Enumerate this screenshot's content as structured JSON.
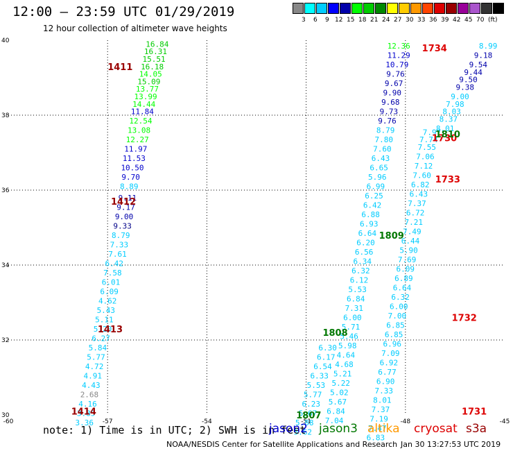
{
  "title": "12:00 – 23:59 UTC 01/29/2019",
  "subtitle": "12 hour collection of altimeter wave heights",
  "scale": {
    "colors": [
      "#888888",
      "#00ffff",
      "#00ccff",
      "#0000ff",
      "#0000aa",
      "#00ff00",
      "#00cc00",
      "#008800",
      "#ffff00",
      "#ffcc00",
      "#ff9900",
      "#ff4400",
      "#dd0000",
      "#990000",
      "#990099",
      "#aa55cc",
      "#333333",
      "#000000"
    ],
    "labels": [
      "3",
      "6",
      "9",
      "12",
      "15",
      "18",
      "21",
      "24",
      "27",
      "30",
      "33",
      "36",
      "39",
      "42",
      "45",
      "70",
      "(ft)"
    ]
  },
  "axes": {
    "x_ticks": [
      "-60",
      "-57",
      "-54",
      "-51",
      "-48",
      "-45"
    ],
    "y_ticks": [
      "30",
      "32",
      "34",
      "36",
      "38",
      "40"
    ],
    "lon_range": [
      -60,
      -45
    ],
    "lat_range": [
      30,
      40
    ]
  },
  "footer": {
    "note": "note: 1) Time is in UTC; 2) SWH is in feet",
    "credit": "NOAA/NESDIS Center for Satellite Applications and Research",
    "timestamp": "Jan 30 13:27:53 UTC 2019"
  },
  "satellites": [
    {
      "name": "jason2",
      "color": "#0000cc"
    },
    {
      "name": "jason3",
      "color": "#007700"
    },
    {
      "name": "altika",
      "color": "#ff9900"
    },
    {
      "name": "cryosat",
      "color": "#dd0000"
    },
    {
      "name": "s3a",
      "color": "#990000"
    }
  ],
  "time_labels": [
    {
      "text": "1411",
      "lon": -57.0,
      "lat": 39.3,
      "color": "#990000"
    },
    {
      "text": "1412",
      "lon": -56.9,
      "lat": 35.7,
      "color": "#990000"
    },
    {
      "text": "1413",
      "lon": -57.3,
      "lat": 32.3,
      "color": "#990000"
    },
    {
      "text": "1414",
      "lon": -58.1,
      "lat": 30.1,
      "color": "#990000"
    },
    {
      "text": "1734",
      "lon": -47.5,
      "lat": 39.8,
      "color": "#dd0000"
    },
    {
      "text": "1733",
      "lon": -47.1,
      "lat": 36.3,
      "color": "#dd0000"
    },
    {
      "text": "1732",
      "lon": -46.6,
      "lat": 32.6,
      "color": "#dd0000"
    },
    {
      "text": "1731",
      "lon": -46.3,
      "lat": 30.1,
      "color": "#dd0000"
    },
    {
      "text": "1730",
      "lon": -47.2,
      "lat": 37.4,
      "color": "#dd0000"
    },
    {
      "text": "1810",
      "lon": -47.1,
      "lat": 37.5,
      "color": "#007700"
    },
    {
      "text": "1809",
      "lon": -48.8,
      "lat": 34.8,
      "color": "#007700"
    },
    {
      "text": "1808",
      "lon": -50.5,
      "lat": 32.2,
      "color": "#007700"
    },
    {
      "text": "1807",
      "lon": -51.3,
      "lat": 30.0,
      "color": "#007700"
    }
  ],
  "tracks": [
    {
      "name": "s3a-track",
      "points": [
        {
          "lon": -55.5,
          "lat": 39.9,
          "v": "16.84",
          "c": "#00cc00"
        },
        {
          "lon": -55.55,
          "lat": 39.7,
          "v": "16.31",
          "c": "#00cc00"
        },
        {
          "lon": -55.6,
          "lat": 39.5,
          "v": "15.51",
          "c": "#00cc00"
        },
        {
          "lon": -55.65,
          "lat": 39.3,
          "v": "16.18",
          "c": "#00cc00"
        },
        {
          "lon": -55.7,
          "lat": 39.1,
          "v": "14.05",
          "c": "#00ff00"
        },
        {
          "lon": -55.75,
          "lat": 38.9,
          "v": "15.09",
          "c": "#00cc00"
        },
        {
          "lon": -55.8,
          "lat": 38.7,
          "v": "13.77",
          "c": "#00ff00"
        },
        {
          "lon": -55.85,
          "lat": 38.5,
          "v": "13.99",
          "c": "#00ff00"
        },
        {
          "lon": -55.9,
          "lat": 38.3,
          "v": "14.44",
          "c": "#00ff00"
        },
        {
          "lon": -55.95,
          "lat": 38.1,
          "v": "11.84",
          "c": "#0000cc"
        },
        {
          "lon": -56.0,
          "lat": 37.85,
          "v": "12.54",
          "c": "#00ff00"
        },
        {
          "lon": -56.05,
          "lat": 37.6,
          "v": "13.08",
          "c": "#00ff00"
        },
        {
          "lon": -56.1,
          "lat": 37.35,
          "v": "12.27",
          "c": "#00ff00"
        },
        {
          "lon": -56.15,
          "lat": 37.1,
          "v": "11.97",
          "c": "#0000cc"
        },
        {
          "lon": -56.2,
          "lat": 36.85,
          "v": "11.53",
          "c": "#0000cc"
        },
        {
          "lon": -56.25,
          "lat": 36.6,
          "v": "10.50",
          "c": "#0000cc"
        },
        {
          "lon": -56.3,
          "lat": 36.35,
          "v": "9.70",
          "c": "#0000cc"
        },
        {
          "lon": -56.35,
          "lat": 36.1,
          "v": "8.89",
          "c": "#00ccff"
        },
        {
          "lon": -56.4,
          "lat": 35.8,
          "v": "9.11",
          "c": "#0000aa"
        },
        {
          "lon": -56.45,
          "lat": 35.55,
          "v": "9.17",
          "c": "#0000aa"
        },
        {
          "lon": -56.5,
          "lat": 35.3,
          "v": "9.00",
          "c": "#0000aa"
        },
        {
          "lon": -56.55,
          "lat": 35.05,
          "v": "9.33",
          "c": "#000088"
        },
        {
          "lon": -56.6,
          "lat": 34.8,
          "v": "8.79",
          "c": "#00ccff"
        },
        {
          "lon": -56.65,
          "lat": 34.55,
          "v": "7.33",
          "c": "#00ccff"
        },
        {
          "lon": -56.7,
          "lat": 34.3,
          "v": "7.61",
          "c": "#00ccff"
        },
        {
          "lon": -56.8,
          "lat": 34.05,
          "v": "6.42",
          "c": "#00ccff"
        },
        {
          "lon": -56.85,
          "lat": 33.8,
          "v": "7.58",
          "c": "#00ccff"
        },
        {
          "lon": -56.9,
          "lat": 33.55,
          "v": "6.01",
          "c": "#00ccff"
        },
        {
          "lon": -56.95,
          "lat": 33.3,
          "v": "6.09",
          "c": "#00ccff"
        },
        {
          "lon": -57.0,
          "lat": 33.05,
          "v": "4.62",
          "c": "#00ccff"
        },
        {
          "lon": -57.05,
          "lat": 32.8,
          "v": "5.43",
          "c": "#00ccff"
        },
        {
          "lon": -57.1,
          "lat": 32.55,
          "v": "5.11",
          "c": "#00ccff"
        },
        {
          "lon": -57.15,
          "lat": 32.3,
          "v": "5.20",
          "c": "#00ccff"
        },
        {
          "lon": -57.2,
          "lat": 32.05,
          "v": "6.27",
          "c": "#00ccff"
        },
        {
          "lon": -57.3,
          "lat": 31.8,
          "v": "5.84",
          "c": "#00ccff"
        },
        {
          "lon": -57.35,
          "lat": 31.55,
          "v": "5.77",
          "c": "#00ccff"
        },
        {
          "lon": -57.4,
          "lat": 31.3,
          "v": "4.72",
          "c": "#00ccff"
        },
        {
          "lon": -57.45,
          "lat": 31.05,
          "v": "4.91",
          "c": "#00ccff"
        },
        {
          "lon": -57.5,
          "lat": 30.8,
          "v": "4.43",
          "c": "#00ccff"
        },
        {
          "lon": -57.55,
          "lat": 30.55,
          "v": "2.68",
          "c": "#888888"
        },
        {
          "lon": -57.6,
          "lat": 30.3,
          "v": "4.16",
          "c": "#00ccff"
        },
        {
          "lon": -57.65,
          "lat": 30.05,
          "v": "3.85",
          "c": "#00ccff"
        },
        {
          "lon": -57.7,
          "lat": 29.8,
          "v": "3.36",
          "c": "#00ccff"
        }
      ]
    },
    {
      "name": "cryosat-track",
      "points": [
        {
          "lon": -45.5,
          "lat": 39.85,
          "v": "8.99",
          "c": "#00ccff"
        },
        {
          "lon": -45.65,
          "lat": 39.6,
          "v": "9.18",
          "c": "#0000aa"
        },
        {
          "lon": -45.8,
          "lat": 39.35,
          "v": "9.54",
          "c": "#0000aa"
        },
        {
          "lon": -45.95,
          "lat": 39.15,
          "v": "9.44",
          "c": "#0000aa"
        },
        {
          "lon": -46.1,
          "lat": 38.95,
          "v": "9.50",
          "c": "#0000aa"
        },
        {
          "lon": -46.2,
          "lat": 38.75,
          "v": "9.38",
          "c": "#0000aa"
        },
        {
          "lon": -46.35,
          "lat": 38.5,
          "v": "9.00",
          "c": "#00ccff"
        },
        {
          "lon": -46.5,
          "lat": 38.3,
          "v": "7.98",
          "c": "#00ccff"
        },
        {
          "lon": -46.6,
          "lat": 38.1,
          "v": "8.03",
          "c": "#00ccff"
        },
        {
          "lon": -46.7,
          "lat": 37.9,
          "v": "8.37",
          "c": "#00ccff"
        },
        {
          "lon": -46.8,
          "lat": 37.65,
          "v": "8.01",
          "c": "#00ccff"
        },
        {
          "lon": -47.2,
          "lat": 37.55,
          "v": "7.97",
          "c": "#00ccff"
        },
        {
          "lon": -47.3,
          "lat": 37.35,
          "v": "7.74",
          "c": "#00ccff"
        },
        {
          "lon": -47.35,
          "lat": 37.15,
          "v": "7.55",
          "c": "#00ccff"
        },
        {
          "lon": -47.4,
          "lat": 36.9,
          "v": "7.06",
          "c": "#00ccff"
        },
        {
          "lon": -47.45,
          "lat": 36.65,
          "v": "7.12",
          "c": "#00ccff"
        },
        {
          "lon": -47.5,
          "lat": 36.4,
          "v": "7.60",
          "c": "#00ccff"
        },
        {
          "lon": -47.55,
          "lat": 36.15,
          "v": "6.82",
          "c": "#00ccff"
        },
        {
          "lon": -47.6,
          "lat": 35.9,
          "v": "6.43",
          "c": "#00ccff"
        },
        {
          "lon": -47.65,
          "lat": 35.65,
          "v": "7.37",
          "c": "#00ccff"
        },
        {
          "lon": -47.7,
          "lat": 35.4,
          "v": "6.72",
          "c": "#00ccff"
        },
        {
          "lon": -47.75,
          "lat": 35.15,
          "v": "7.21",
          "c": "#00ccff"
        },
        {
          "lon": -47.8,
          "lat": 34.9,
          "v": "7.49",
          "c": "#00ccff"
        },
        {
          "lon": -47.85,
          "lat": 34.65,
          "v": "6.44",
          "c": "#00ccff"
        },
        {
          "lon": -47.9,
          "lat": 34.4,
          "v": "5.90",
          "c": "#00ccff"
        },
        {
          "lon": -47.95,
          "lat": 34.15,
          "v": "7.69",
          "c": "#00ccff"
        },
        {
          "lon": -48.0,
          "lat": 33.9,
          "v": "6.09",
          "c": "#00ccff"
        },
        {
          "lon": -48.05,
          "lat": 33.65,
          "v": "6.89",
          "c": "#00ccff"
        },
        {
          "lon": -48.1,
          "lat": 33.4,
          "v": "6.64",
          "c": "#00ccff"
        },
        {
          "lon": -48.15,
          "lat": 33.15,
          "v": "6.32",
          "c": "#00ccff"
        },
        {
          "lon": -48.2,
          "lat": 32.9,
          "v": "6.00",
          "c": "#00ccff"
        },
        {
          "lon": -48.25,
          "lat": 32.65,
          "v": "7.00",
          "c": "#00ccff"
        },
        {
          "lon": -48.3,
          "lat": 32.4,
          "v": "6.85",
          "c": "#00ccff"
        },
        {
          "lon": -48.35,
          "lat": 32.15,
          "v": "6.85",
          "c": "#00ccff"
        },
        {
          "lon": -48.4,
          "lat": 31.9,
          "v": "6.96",
          "c": "#00ccff"
        },
        {
          "lon": -48.45,
          "lat": 31.65,
          "v": "7.09",
          "c": "#00ccff"
        },
        {
          "lon": -48.5,
          "lat": 31.4,
          "v": "6.92",
          "c": "#00ccff"
        },
        {
          "lon": -48.55,
          "lat": 31.15,
          "v": "6.77",
          "c": "#00ccff"
        },
        {
          "lon": -48.6,
          "lat": 30.9,
          "v": "6.90",
          "c": "#00ccff"
        },
        {
          "lon": -48.65,
          "lat": 30.65,
          "v": "7.33",
          "c": "#00ccff"
        },
        {
          "lon": -48.7,
          "lat": 30.4,
          "v": "8.01",
          "c": "#00ccff"
        },
        {
          "lon": -48.75,
          "lat": 30.15,
          "v": "7.37",
          "c": "#00ccff"
        },
        {
          "lon": -48.8,
          "lat": 29.9,
          "v": "7.19",
          "c": "#00ccff"
        },
        {
          "lon": -48.85,
          "lat": 29.65,
          "v": "7.47",
          "c": "#00ccff"
        },
        {
          "lon": -48.9,
          "lat": 29.4,
          "v": "6.83",
          "c": "#00ccff"
        }
      ]
    },
    {
      "name": "jason3-track",
      "points": [
        {
          "lon": -48.2,
          "lat": 39.85,
          "v": "12.36",
          "c": "#00ff00"
        },
        {
          "lon": -48.2,
          "lat": 39.6,
          "v": "11.29",
          "c": "#0000cc"
        },
        {
          "lon": -48.25,
          "lat": 39.35,
          "v": "10.79",
          "c": "#0000cc"
        },
        {
          "lon": -48.3,
          "lat": 39.1,
          "v": "9.76",
          "c": "#0000aa"
        },
        {
          "lon": -48.35,
          "lat": 38.85,
          "v": "9.67",
          "c": "#0000aa"
        },
        {
          "lon": -48.4,
          "lat": 38.6,
          "v": "9.90",
          "c": "#0000aa"
        },
        {
          "lon": -48.45,
          "lat": 38.35,
          "v": "9.68",
          "c": "#0000aa"
        },
        {
          "lon": -48.5,
          "lat": 38.1,
          "v": "9.73",
          "c": "#0000aa"
        },
        {
          "lon": -48.55,
          "lat": 37.85,
          "v": "9.76",
          "c": "#0000aa"
        },
        {
          "lon": -48.6,
          "lat": 37.6,
          "v": "8.79",
          "c": "#00ccff"
        },
        {
          "lon": -48.65,
          "lat": 37.35,
          "v": "7.80",
          "c": "#00ccff"
        },
        {
          "lon": -48.7,
          "lat": 37.1,
          "v": "7.60",
          "c": "#00ccff"
        },
        {
          "lon": -48.75,
          "lat": 36.85,
          "v": "6.43",
          "c": "#00ccff"
        },
        {
          "lon": -48.8,
          "lat": 36.6,
          "v": "6.65",
          "c": "#00ccff"
        },
        {
          "lon": -48.85,
          "lat": 36.35,
          "v": "5.96",
          "c": "#00ccff"
        },
        {
          "lon": -48.9,
          "lat": 36.1,
          "v": "6.99",
          "c": "#00ccff"
        },
        {
          "lon": -48.95,
          "lat": 35.85,
          "v": "6.25",
          "c": "#00ccff"
        },
        {
          "lon": -49.0,
          "lat": 35.6,
          "v": "6.42",
          "c": "#00ccff"
        },
        {
          "lon": -49.05,
          "lat": 35.35,
          "v": "6.88",
          "c": "#00ccff"
        },
        {
          "lon": -49.1,
          "lat": 35.1,
          "v": "6.93",
          "c": "#00ccff"
        },
        {
          "lon": -49.15,
          "lat": 34.85,
          "v": "6.64",
          "c": "#00ccff"
        },
        {
          "lon": -49.2,
          "lat": 34.6,
          "v": "6.20",
          "c": "#00ccff"
        },
        {
          "lon": -49.25,
          "lat": 34.35,
          "v": "6.56",
          "c": "#00ccff"
        },
        {
          "lon": -49.3,
          "lat": 34.1,
          "v": "6.34",
          "c": "#00ccff"
        },
        {
          "lon": -49.35,
          "lat": 33.85,
          "v": "6.32",
          "c": "#00ccff"
        },
        {
          "lon": -49.4,
          "lat": 33.6,
          "v": "6.12",
          "c": "#00ccff"
        },
        {
          "lon": -49.45,
          "lat": 33.35,
          "v": "5.53",
          "c": "#00ccff"
        },
        {
          "lon": -49.5,
          "lat": 33.1,
          "v": "6.84",
          "c": "#00ccff"
        },
        {
          "lon": -49.55,
          "lat": 32.85,
          "v": "7.31",
          "c": "#00ccff"
        },
        {
          "lon": -49.6,
          "lat": 32.6,
          "v": "6.00",
          "c": "#00ccff"
        },
        {
          "lon": -49.65,
          "lat": 32.35,
          "v": "5.71",
          "c": "#00ccff"
        },
        {
          "lon": -49.7,
          "lat": 32.1,
          "v": "5.46",
          "c": "#00ccff"
        },
        {
          "lon": -49.75,
          "lat": 31.85,
          "v": "5.98",
          "c": "#00ccff"
        },
        {
          "lon": -49.8,
          "lat": 31.6,
          "v": "4.64",
          "c": "#00ccff"
        },
        {
          "lon": -49.85,
          "lat": 31.35,
          "v": "4.68",
          "c": "#00ccff"
        },
        {
          "lon": -49.9,
          "lat": 31.1,
          "v": "5.21",
          "c": "#00ccff"
        },
        {
          "lon": -49.95,
          "lat": 30.85,
          "v": "5.22",
          "c": "#00ccff"
        },
        {
          "lon": -50.0,
          "lat": 30.6,
          "v": "5.02",
          "c": "#00ccff"
        },
        {
          "lon": -50.05,
          "lat": 30.35,
          "v": "5.67",
          "c": "#00ccff"
        },
        {
          "lon": -50.1,
          "lat": 30.1,
          "v": "6.84",
          "c": "#00ccff"
        },
        {
          "lon": -50.15,
          "lat": 29.85,
          "v": "7.04",
          "c": "#00ccff"
        }
      ]
    },
    {
      "name": "jason3-track-south",
      "points": [
        {
          "lon": -50.35,
          "lat": 31.8,
          "v": "6.30",
          "c": "#00ccff"
        },
        {
          "lon": -50.4,
          "lat": 31.55,
          "v": "6.17",
          "c": "#00ccff"
        },
        {
          "lon": -50.5,
          "lat": 31.3,
          "v": "6.54",
          "c": "#00ccff"
        },
        {
          "lon": -50.6,
          "lat": 31.05,
          "v": "6.33",
          "c": "#00ccff"
        },
        {
          "lon": -50.7,
          "lat": 30.8,
          "v": "5.53",
          "c": "#00ccff"
        },
        {
          "lon": -50.8,
          "lat": 30.55,
          "v": "5.77",
          "c": "#00ccff"
        },
        {
          "lon": -50.85,
          "lat": 30.3,
          "v": "6.23",
          "c": "#00ccff"
        },
        {
          "lon": -50.95,
          "lat": 30.05,
          "v": "5.67",
          "c": "#00ccff"
        },
        {
          "lon": -51.05,
          "lat": 29.8,
          "v": "5.88",
          "c": "#00ccff"
        },
        {
          "lon": -51.1,
          "lat": 29.55,
          "v": "5.62",
          "c": "#00ccff"
        }
      ]
    }
  ]
}
